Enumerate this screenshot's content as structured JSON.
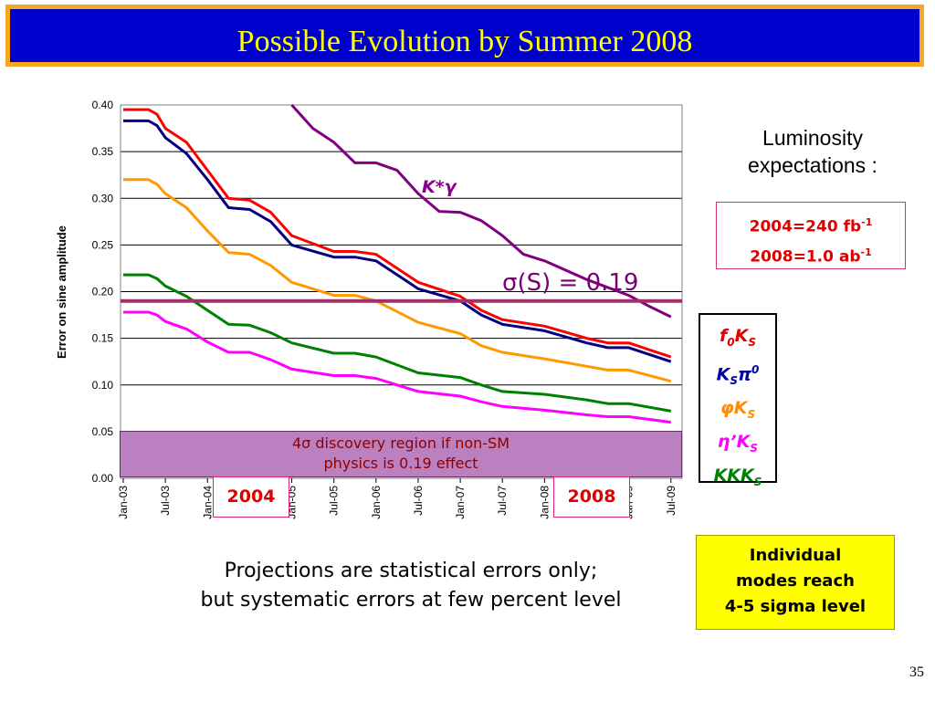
{
  "slide": {
    "title": "Possible Evolution by Summer 2008",
    "page_number": "35",
    "colors": {
      "title_bg": "#0000cc",
      "title_border": "#f5a623",
      "title_text": "#ffff00"
    }
  },
  "luminosity": {
    "heading": "Luminosity expectations :",
    "line1_main": "2004=240 fb",
    "line1_sup": "-1",
    "line2_main": "2008=1.0 ab",
    "line2_sup": "-1"
  },
  "modes_legend": [
    {
      "base": "f",
      "sub": "0",
      "tail": "K",
      "sub2": "S",
      "color": "#e00000"
    },
    {
      "base": "K",
      "sub": "S",
      "tail": "π",
      "sup": "0",
      "color": "#0000aa"
    },
    {
      "base": "φ",
      "sub": "",
      "tail": "K",
      "sub2": "S",
      "color": "#ff8c00"
    },
    {
      "base": "η",
      "sub": "",
      "tail": "’K",
      "sub2": "S",
      "color": "#ff00ff"
    },
    {
      "base": "KKK",
      "sub": "",
      "tail": "",
      "sub2": "S",
      "color": "#008000"
    }
  ],
  "discovery_region": {
    "line1": "4σ discovery region if non-SM",
    "line2": "physics is 0.19 effect"
  },
  "year_markers": [
    "2004",
    "2008"
  ],
  "projection_note": {
    "line1": "Projections are statistical errors only;",
    "line2": "but systematic errors at few percent level"
  },
  "individual_note": {
    "line1": "Individual",
    "line2": "modes reach",
    "line3": "4-5 sigma level"
  },
  "chart_data": {
    "type": "line",
    "ylabel": "Error on sine amplitude",
    "xlabel": "",
    "ylim": [
      0.0,
      0.4
    ],
    "yticks": [
      "0.00",
      "0.05",
      "0.10",
      "0.15",
      "0.20",
      "0.25",
      "0.30",
      "0.35",
      "0.40"
    ],
    "xticks": [
      "Jan-03",
      "Jul-03",
      "Jan-04",
      "Jul-04",
      "Jan-05",
      "Jul-05",
      "Jan-06",
      "Jul-06",
      "Jan-07",
      "Jul-07",
      "Jan-08",
      "Jul-08",
      "Jan-09",
      "Jul-09"
    ],
    "grid": "horizontal",
    "reference_line": {
      "value": 0.19,
      "label": "σ(S) = 0.19",
      "color": "#a0306a"
    },
    "annotation": {
      "text": "K*γ",
      "color": "#8b008b"
    },
    "series": [
      {
        "name": "f0KS",
        "color": "#ff0000",
        "x": [
          0,
          0.6,
          0.8,
          1,
          1.5,
          2,
          2.5,
          3,
          3.5,
          4,
          5,
          5.5,
          6,
          7,
          8,
          8.5,
          9,
          10,
          11,
          11.5,
          12,
          13
        ],
        "y": [
          0.395,
          0.395,
          0.39,
          0.375,
          0.36,
          0.33,
          0.3,
          0.298,
          0.285,
          0.26,
          0.243,
          0.243,
          0.24,
          0.21,
          0.195,
          0.18,
          0.17,
          0.163,
          0.15,
          0.145,
          0.145,
          0.13
        ]
      },
      {
        "name": "KSπ0",
        "color": "#000080",
        "x": [
          0,
          0.6,
          0.8,
          1,
          1.5,
          2,
          2.5,
          3,
          3.5,
          4,
          5,
          5.5,
          6,
          7,
          8,
          8.5,
          9,
          10,
          11,
          11.5,
          12,
          13
        ],
        "y": [
          0.383,
          0.383,
          0.378,
          0.365,
          0.348,
          0.32,
          0.29,
          0.288,
          0.275,
          0.25,
          0.237,
          0.237,
          0.233,
          0.203,
          0.19,
          0.175,
          0.165,
          0.158,
          0.145,
          0.14,
          0.14,
          0.125
        ]
      },
      {
        "name": "φKS",
        "color": "#ff9900",
        "x": [
          0,
          0.6,
          0.8,
          1,
          1.5,
          2,
          2.5,
          3,
          3.5,
          4,
          5,
          5.5,
          6,
          7,
          8,
          8.5,
          9,
          10,
          11,
          11.5,
          12,
          13
        ],
        "y": [
          0.32,
          0.32,
          0.315,
          0.305,
          0.29,
          0.265,
          0.242,
          0.24,
          0.228,
          0.21,
          0.196,
          0.196,
          0.19,
          0.167,
          0.155,
          0.142,
          0.135,
          0.128,
          0.12,
          0.116,
          0.116,
          0.104
        ]
      },
      {
        "name": "KKKS",
        "color": "#008000",
        "x": [
          0,
          0.6,
          0.8,
          1,
          1.5,
          2,
          2.5,
          3,
          3.5,
          4,
          5,
          5.5,
          6,
          7,
          8,
          8.5,
          9,
          10,
          11,
          11.5,
          12,
          13
        ],
        "y": [
          0.218,
          0.218,
          0.214,
          0.206,
          0.195,
          0.18,
          0.165,
          0.164,
          0.156,
          0.145,
          0.134,
          0.134,
          0.13,
          0.113,
          0.108,
          0.1,
          0.093,
          0.09,
          0.084,
          0.08,
          0.08,
          0.072
        ]
      },
      {
        "name": "η′KS",
        "color": "#ff00ff",
        "x": [
          0,
          0.6,
          0.8,
          1,
          1.5,
          2,
          2.5,
          3,
          3.5,
          4,
          5,
          5.5,
          6,
          7,
          8,
          8.5,
          9,
          10,
          11,
          11.5,
          12,
          13
        ],
        "y": [
          0.178,
          0.178,
          0.175,
          0.168,
          0.16,
          0.146,
          0.135,
          0.135,
          0.127,
          0.117,
          0.11,
          0.11,
          0.107,
          0.093,
          0.088,
          0.082,
          0.077,
          0.073,
          0.068,
          0.066,
          0.066,
          0.06
        ]
      },
      {
        "name": "K*γ",
        "color": "#800080",
        "x": [
          4,
          4.5,
          5,
          5.5,
          6,
          6.5,
          7,
          7.5,
          8,
          8.5,
          9,
          9.5,
          10,
          11,
          12,
          12.5,
          13
        ],
        "y": [
          0.4,
          0.375,
          0.36,
          0.338,
          0.338,
          0.33,
          0.305,
          0.286,
          0.285,
          0.276,
          0.26,
          0.24,
          0.233,
          0.213,
          0.196,
          0.184,
          0.173
        ]
      }
    ]
  }
}
